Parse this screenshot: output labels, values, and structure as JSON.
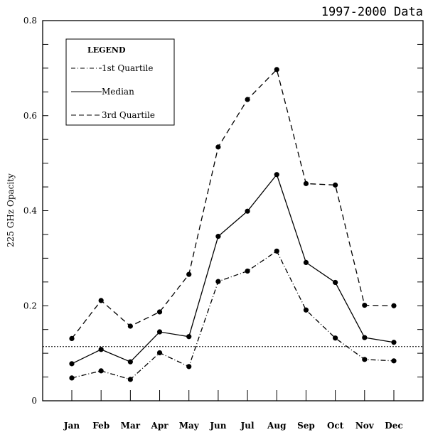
{
  "chart_data": {
    "type": "line",
    "title": "1997-2000 Data",
    "xlabel": "",
    "ylabel": "225 GHz Opacity",
    "ylim": [
      0,
      0.8
    ],
    "yticks": [
      "0",
      "0.2",
      "0.4",
      "0.6",
      "0.8"
    ],
    "categories": [
      "Jan",
      "Feb",
      "Mar",
      "Apr",
      "May",
      "Jun",
      "Jul",
      "Aug",
      "Sep",
      "Oct",
      "Nov",
      "Dec"
    ],
    "legend_title": "LEGEND",
    "legend_position": "top-left",
    "grid": false,
    "series": [
      {
        "name": "1st Quartile",
        "style": "dashdot",
        "values": [
          0.048,
          0.063,
          0.045,
          0.101,
          0.072,
          0.251,
          0.273,
          0.315,
          0.191,
          0.132,
          0.087,
          0.084
        ]
      },
      {
        "name": "Median",
        "style": "solid",
        "values": [
          0.078,
          0.108,
          0.082,
          0.145,
          0.135,
          0.346,
          0.399,
          0.476,
          0.291,
          0.249,
          0.133,
          0.123
        ]
      },
      {
        "name": "3rd Quartile",
        "style": "dashed",
        "values": [
          0.131,
          0.211,
          0.157,
          0.187,
          0.266,
          0.534,
          0.634,
          0.697,
          0.457,
          0.454,
          0.201,
          0.2
        ]
      }
    ],
    "reference_line": {
      "style": "dotted",
      "value": 0.114
    }
  }
}
